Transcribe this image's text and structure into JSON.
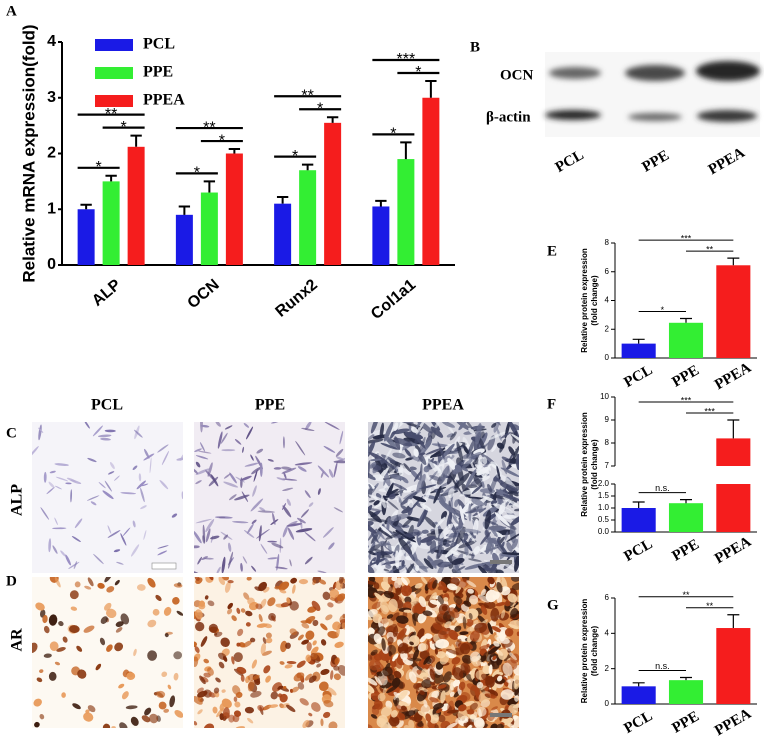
{
  "chart_data": [
    {
      "panel": "A",
      "type": "bar",
      "ylabel": "Relative mRNA expression(fold)",
      "categories": [
        "ALP",
        "OCN",
        "Runx2",
        "Col1a1"
      ],
      "series": [
        {
          "name": "PCL",
          "color": "#1a1ae6",
          "values": [
            1.0,
            0.9,
            1.1,
            1.05
          ],
          "errors": [
            0.08,
            0.15,
            0.12,
            0.1
          ]
        },
        {
          "name": "PPE",
          "color": "#33ee33",
          "values": [
            1.5,
            1.3,
            1.7,
            1.9
          ],
          "errors": [
            0.1,
            0.2,
            0.1,
            0.3
          ]
        },
        {
          "name": "PPEA",
          "color": "#f51d1d",
          "values": [
            2.12,
            2.0,
            2.55,
            3.0
          ],
          "errors": [
            0.2,
            0.08,
            0.1,
            0.3
          ]
        }
      ],
      "ylim": [
        0,
        4
      ],
      "yticks": [
        0,
        1,
        2,
        3,
        4
      ],
      "significance": [
        {
          "category": 0,
          "pair": [
            0,
            1
          ],
          "label": "*"
        },
        {
          "category": 0,
          "pair": [
            0,
            2
          ],
          "label": "**"
        },
        {
          "category": 0,
          "pair": [
            1,
            2
          ],
          "label": "*"
        },
        {
          "category": 1,
          "pair": [
            0,
            1
          ],
          "label": "*"
        },
        {
          "category": 1,
          "pair": [
            0,
            2
          ],
          "label": "**"
        },
        {
          "category": 1,
          "pair": [
            1,
            2
          ],
          "label": "*"
        },
        {
          "category": 2,
          "pair": [
            0,
            1
          ],
          "label": "*"
        },
        {
          "category": 2,
          "pair": [
            0,
            2
          ],
          "label": "**"
        },
        {
          "category": 2,
          "pair": [
            1,
            2
          ],
          "label": "*"
        },
        {
          "category": 3,
          "pair": [
            0,
            1
          ],
          "label": "*"
        },
        {
          "category": 3,
          "pair": [
            0,
            2
          ],
          "label": "***"
        },
        {
          "category": 3,
          "pair": [
            1,
            2
          ],
          "label": "*"
        }
      ]
    },
    {
      "panel": "E",
      "type": "bar",
      "ylabel": [
        "Relative protein expression",
        "(fold change)"
      ],
      "categories": [
        "PCL",
        "PPE",
        "PPEA"
      ],
      "values": [
        1.0,
        2.45,
        6.45
      ],
      "errors": [
        0.3,
        0.3,
        0.5
      ],
      "colors": [
        "#1a1ae6",
        "#33ee33",
        "#f51d1d"
      ],
      "ylim": [
        0,
        8
      ],
      "yticks": [
        0,
        2,
        4,
        6,
        8
      ],
      "significance": [
        {
          "pair": [
            0,
            1
          ],
          "label": "*"
        },
        {
          "pair": [
            0,
            2
          ],
          "label": "***"
        },
        {
          "pair": [
            1,
            2
          ],
          "label": "**"
        }
      ]
    },
    {
      "panel": "F",
      "type": "bar",
      "ylabel": [
        "Relative protein expression",
        "(fold change)"
      ],
      "categories": [
        "PCL",
        "PPE",
        "PPEA"
      ],
      "values": [
        1.0,
        1.2,
        8.2
      ],
      "errors": [
        0.25,
        0.15,
        0.8
      ],
      "colors": [
        "#1a1ae6",
        "#33ee33",
        "#f51d1d"
      ],
      "ylim": [
        0,
        10
      ],
      "ybreak": [
        2,
        7
      ],
      "yticks": [
        {
          "value": 0,
          "label": "0.0"
        },
        {
          "value": 0.5,
          "label": "0.5"
        },
        {
          "value": 1,
          "label": "1.0"
        },
        {
          "value": 1.5,
          "label": "1.5"
        },
        {
          "value": 2,
          "label": "2.0"
        },
        7,
        8,
        9,
        10
      ],
      "significance": [
        {
          "pair": [
            0,
            1
          ],
          "label": "n.s."
        },
        {
          "pair": [
            0,
            2
          ],
          "label": "***"
        },
        {
          "pair": [
            1,
            2
          ],
          "label": "***"
        }
      ]
    },
    {
      "panel": "G",
      "type": "bar",
      "ylabel": [
        "Relative protein expression",
        "(fold change)"
      ],
      "categories": [
        "PCL",
        "PPE",
        "PPEA"
      ],
      "values": [
        1.0,
        1.35,
        4.3
      ],
      "errors": [
        0.2,
        0.15,
        0.75
      ],
      "colors": [
        "#1a1ae6",
        "#33ee33",
        "#f51d1d"
      ],
      "ylim": [
        0,
        6
      ],
      "yticks": [
        0,
        2,
        4,
        6
      ],
      "significance": [
        {
          "pair": [
            0,
            1
          ],
          "label": "n.s."
        },
        {
          "pair": [
            0,
            2
          ],
          "label": "**"
        },
        {
          "pair": [
            1,
            2
          ],
          "label": "**"
        }
      ]
    }
  ],
  "blot": {
    "panel": "B",
    "rows": [
      "OCN",
      "β-actin"
    ],
    "lanes": [
      "PCL",
      "PPE",
      "PPEA"
    ]
  },
  "staining": {
    "columns": [
      "PCL",
      "PPE",
      "PPEA"
    ],
    "rows": [
      {
        "panel": "C",
        "label": "ALP"
      },
      {
        "panel": "D",
        "label": "AR"
      }
    ]
  }
}
